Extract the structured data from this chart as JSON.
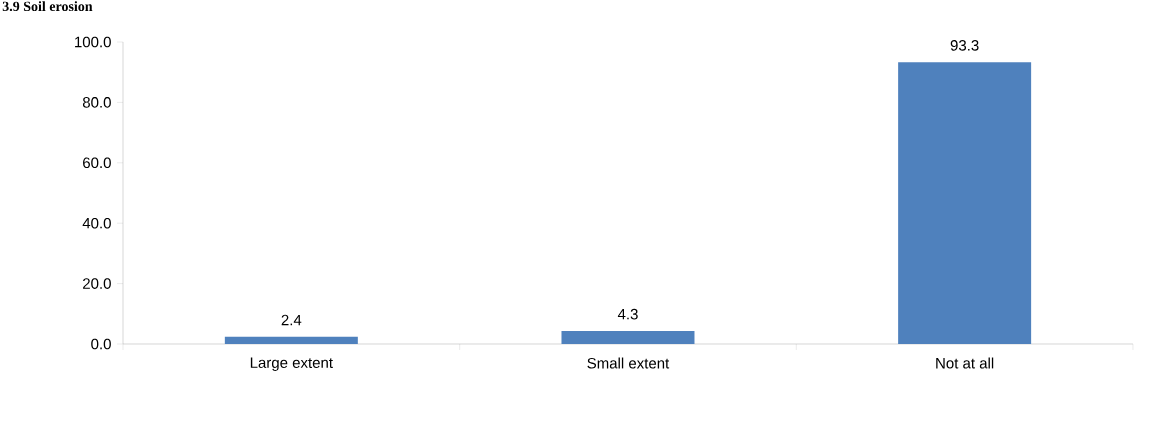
{
  "chart_data": {
    "type": "bar",
    "title": "3.9 Soil erosion",
    "categories": [
      "Large extent",
      "Small extent",
      "Not at all"
    ],
    "values": [
      2.4,
      4.3,
      93.3
    ],
    "color": "#4f81bd",
    "value_labels": [
      "2.4",
      "4.3",
      "93.3"
    ],
    "ylim": [
      0,
      100
    ],
    "yticks": [
      {
        "value": 0,
        "label": "0.0"
      },
      {
        "value": 20,
        "label": "20.0"
      },
      {
        "value": 40,
        "label": "40.0"
      },
      {
        "value": 60,
        "label": "60.0"
      },
      {
        "value": 80,
        "label": "80.0"
      },
      {
        "value": 100,
        "label": "100.0"
      }
    ],
    "grid": false
  }
}
